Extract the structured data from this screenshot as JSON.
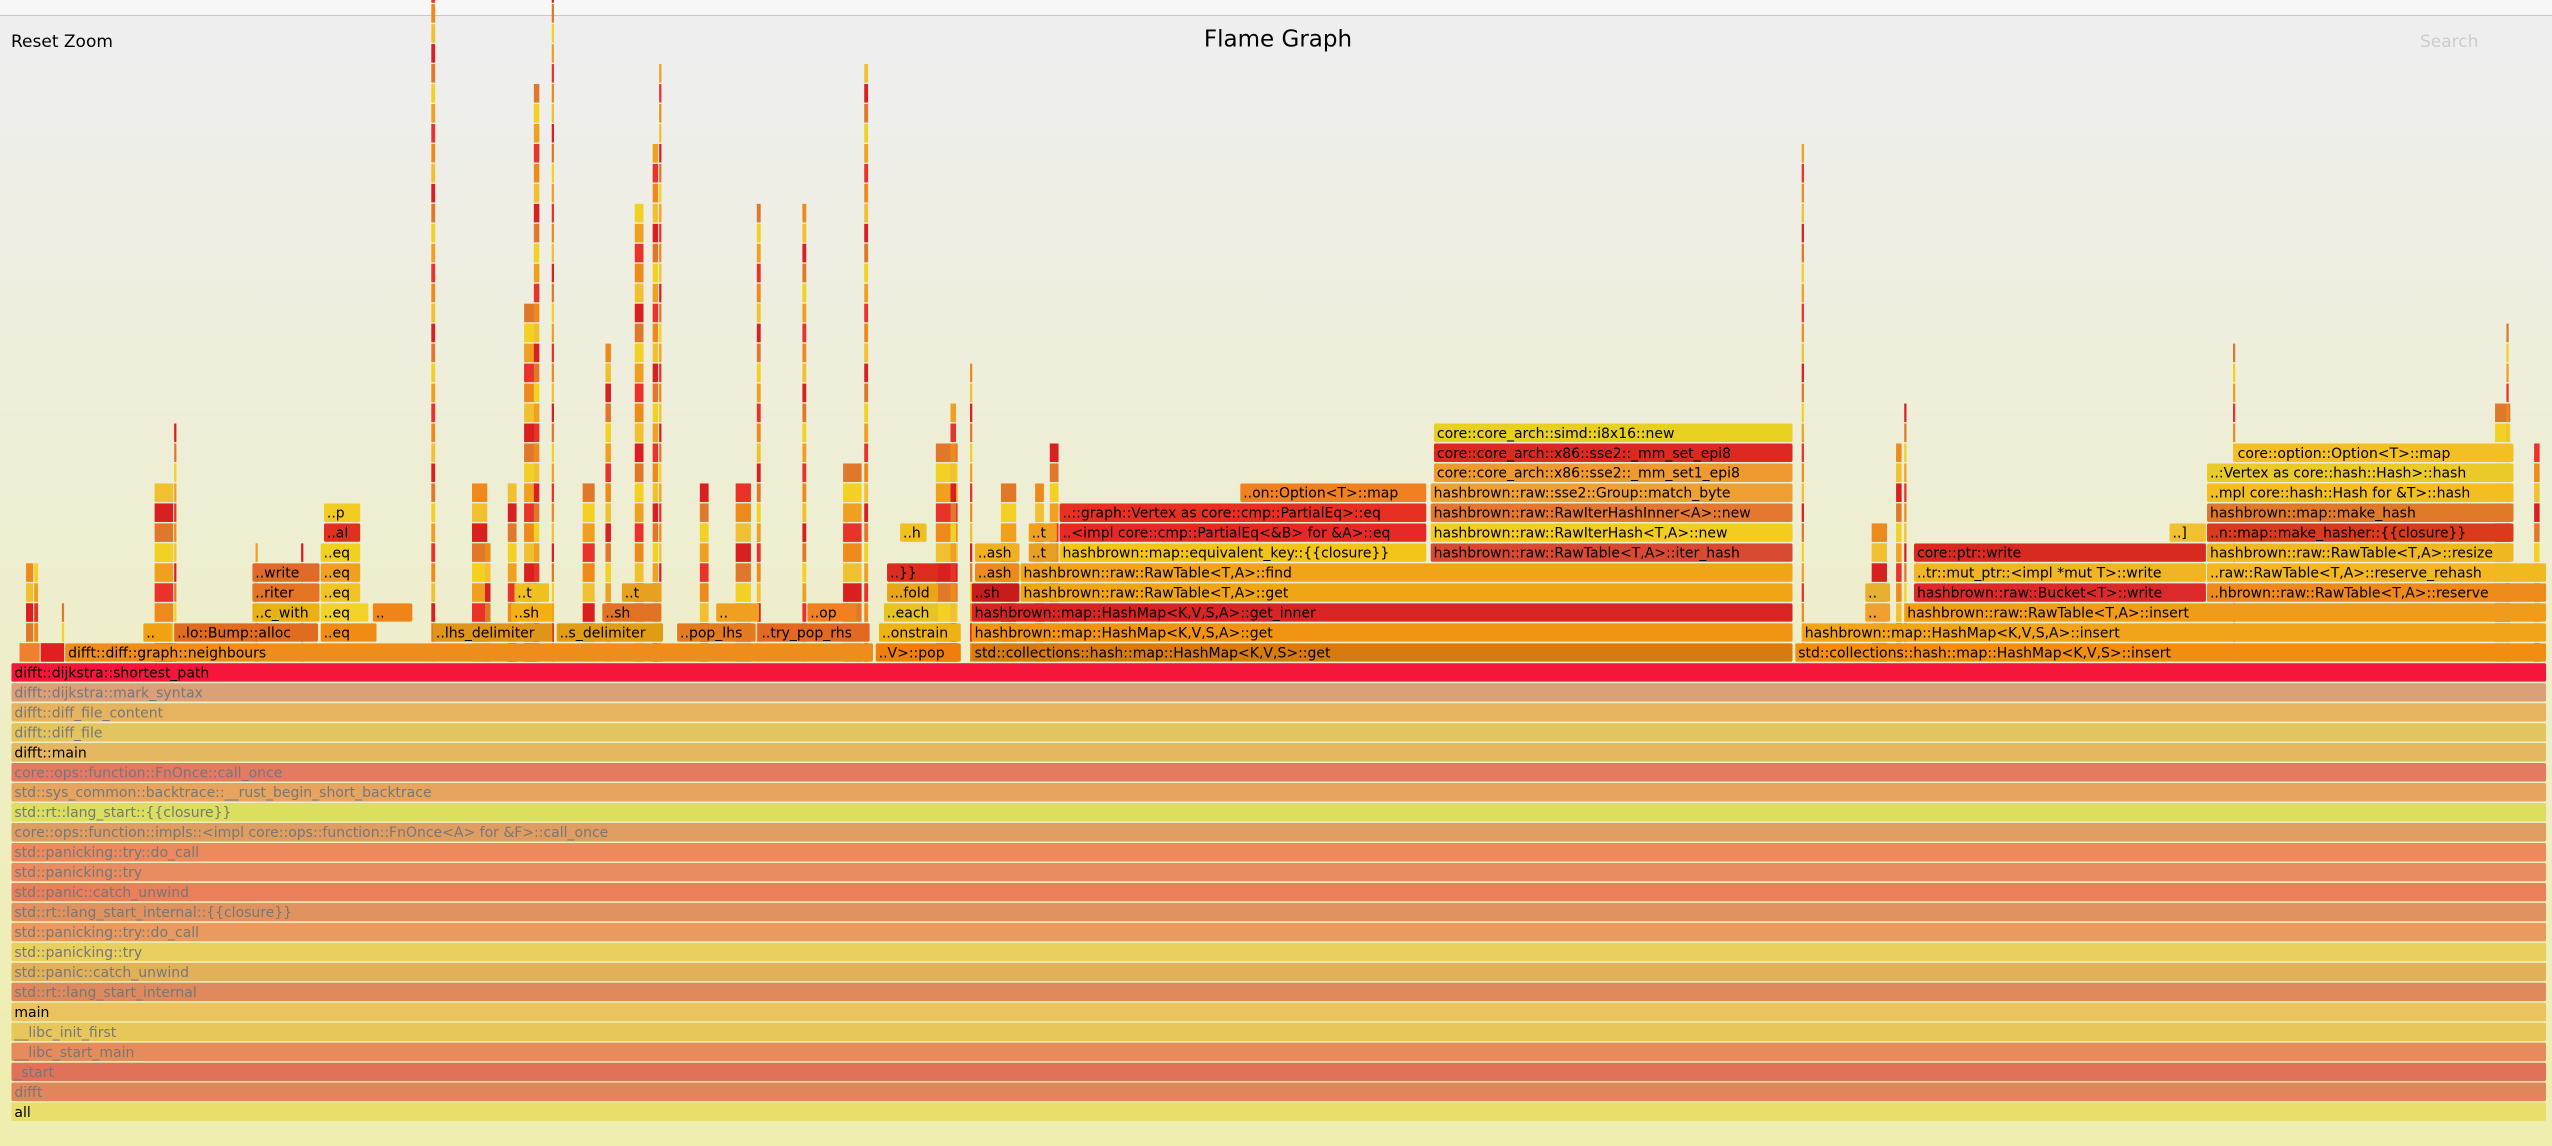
{
  "header": {
    "reset_zoom": "Reset Zoom",
    "title": "Flame Graph",
    "search": "Search"
  },
  "frames": [
    {
      "label": "all"
    },
    {
      "label": "difft"
    },
    {
      "label": "_start"
    },
    {
      "label": "__libc_start_main"
    },
    {
      "label": "__libc_init_first"
    },
    {
      "label": "main"
    },
    {
      "label": "std::rt::lang_start_internal"
    },
    {
      "label": "std::panic::catch_unwind"
    },
    {
      "label": "std::panicking::try"
    },
    {
      "label": "std::panicking::try::do_call"
    },
    {
      "label": "std::rt::lang_start_internal::{{closure}}"
    },
    {
      "label": "std::panic::catch_unwind"
    },
    {
      "label": "std::panicking::try"
    },
    {
      "label": "std::panicking::try::do_call"
    },
    {
      "label": "core::ops::function::impls::<impl core::ops::function::FnOnce<A> for &F>::call_once"
    },
    {
      "label": "std::rt::lang_start::{{closure}}"
    },
    {
      "label": "std::sys_common::backtrace::__rust_begin_short_backtrace"
    },
    {
      "label": "core::ops::function::FnOnce::call_once"
    },
    {
      "label": "difft::main"
    },
    {
      "label": "difft::diff_file"
    },
    {
      "label": "difft::diff_file_content"
    },
    {
      "label": "difft::dijkstra::mark_syntax"
    },
    {
      "label": "difft::dijkstra::shortest_path"
    },
    {
      "label": "difft::diff::graph::neighbours"
    },
    {
      "label": "..V>::pop"
    },
    {
      "label": "std::collections::hash::map::HashMap<K,V,S>::get"
    },
    {
      "label": "std::collections::hash::map::HashMap<K,V,S>::insert"
    },
    {
      "label": ".."
    },
    {
      "label": "..lo::Bump::alloc"
    },
    {
      "label": "..eq"
    },
    {
      "label": "..lhs_delimiter"
    },
    {
      "label": "..s_delimiter"
    },
    {
      "label": "..pop_lhs"
    },
    {
      "label": "..try_pop_rhs"
    },
    {
      "label": "..onstrain"
    },
    {
      "label": "hashbrown::map::HashMap<K,V,S,A>::get"
    },
    {
      "label": "hashbrown::map::HashMap<K,V,S,A>::insert"
    },
    {
      "label": "..c_with"
    },
    {
      "label": "..eq"
    },
    {
      "label": ".."
    },
    {
      "label": "..sh"
    },
    {
      "label": "..sh"
    },
    {
      "label": ".."
    },
    {
      "label": "..op"
    },
    {
      "label": "..each"
    },
    {
      "label": "hashbrown::map::HashMap<K,V,S,A>::get_inner"
    },
    {
      "label": ".."
    },
    {
      "label": "hashbrown::raw::RawTable<T,A>::insert"
    },
    {
      "label": "..riter"
    },
    {
      "label": "..eq"
    },
    {
      "label": "..t"
    },
    {
      "label": "..t"
    },
    {
      "label": "...fold"
    },
    {
      "label": "..sh"
    },
    {
      "label": "hashbrown::raw::RawTable<T,A>::get"
    },
    {
      "label": ".."
    },
    {
      "label": "hashbrown::raw::Bucket<T>::write"
    },
    {
      "label": "..hbrown::raw::RawTable<T,A>::reserve"
    },
    {
      "label": "..write"
    },
    {
      "label": "..eq"
    },
    {
      "label": "..}}"
    },
    {
      "label": "..ash"
    },
    {
      "label": "hashbrown::raw::RawTable<T,A>::find"
    },
    {
      "label": "..tr::mut_ptr::<impl *mut T>::write"
    },
    {
      "label": "..raw::RawTable<T,A>::reserve_rehash"
    },
    {
      "label": "..eq"
    },
    {
      "label": "..ash"
    },
    {
      "label": "..t"
    },
    {
      "label": "hashbrown::map::equivalent_key::{{closure}}"
    },
    {
      "label": "hashbrown::raw::RawTable<T,A>::iter_hash"
    },
    {
      "label": "core::ptr::write"
    },
    {
      "label": "hashbrown::raw::RawTable<T,A>::resize"
    },
    {
      "label": "..al"
    },
    {
      "label": "..h"
    },
    {
      "label": "..t"
    },
    {
      "label": "..<impl core::cmp::PartialEq<&B> for &A>::eq"
    },
    {
      "label": "hashbrown::raw::RawIterHash<T,A>::new"
    },
    {
      "label": "..]"
    },
    {
      "label": "..n::map::make_hasher::{{closure}}"
    },
    {
      "label": "..p"
    },
    {
      "label": "..::graph::Vertex as core::cmp::PartialEq>::eq"
    },
    {
      "label": "hashbrown::raw::RawIterHashInner<A>::new"
    },
    {
      "label": "hashbrown::map::make_hash"
    },
    {
      "label": "..on::Option<T>::map"
    },
    {
      "label": "hashbrown::raw::sse2::Group::match_byte"
    },
    {
      "label": "..mpl core::hash::Hash for &T>::hash"
    },
    {
      "label": "core::core_arch::x86::sse2::_mm_set1_epi8"
    },
    {
      "label": "..:Vertex as core::hash::Hash>::hash"
    },
    {
      "label": "core::core_arch::x86::sse2::_mm_set_epi8"
    },
    {
      "label": "core::option::Option<T>::map"
    },
    {
      "label": "core::core_arch::simd::i8x16::new"
    }
  ]
}
